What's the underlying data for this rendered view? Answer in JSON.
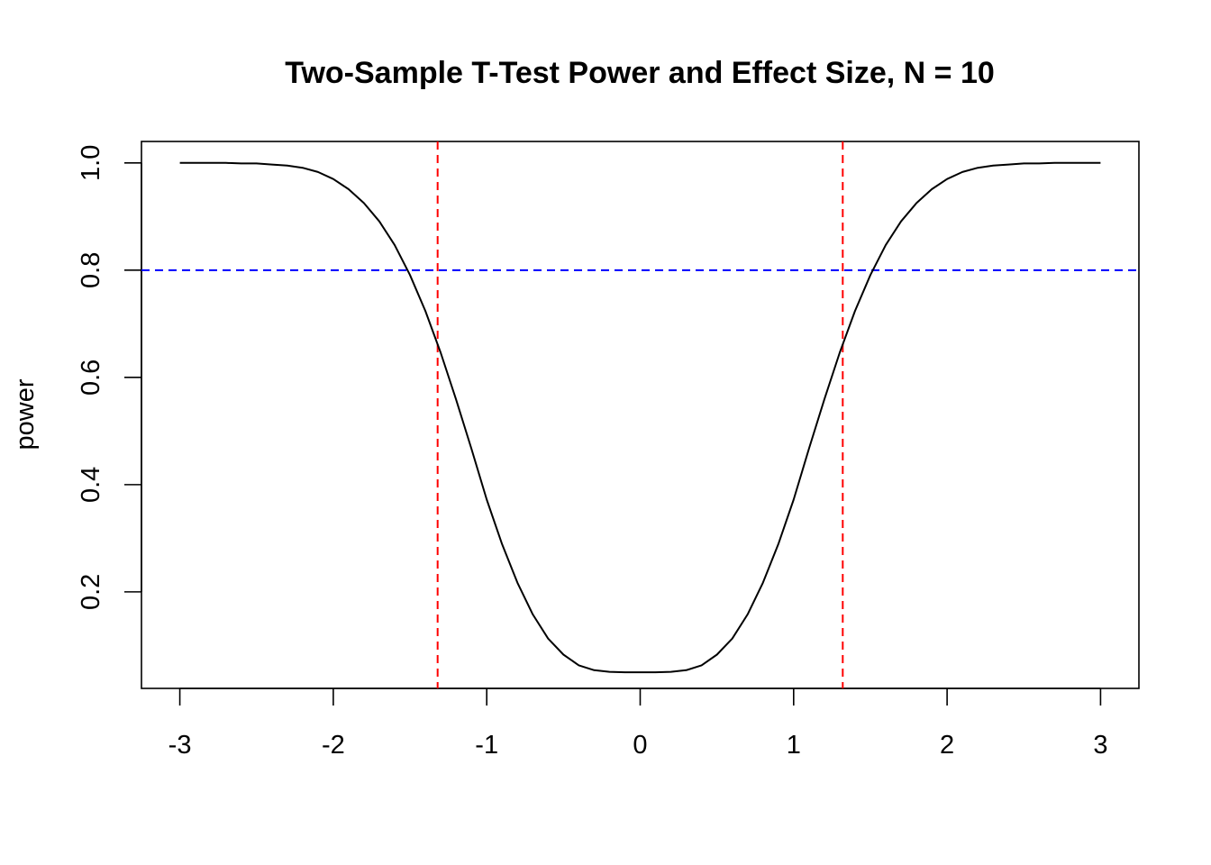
{
  "chart_data": {
    "type": "line",
    "title": "Two-Sample T-Test Power and Effect Size, N = 10",
    "xlabel": "",
    "ylabel": "power",
    "xlim": [
      -3.25,
      3.25
    ],
    "ylim": [
      0.02,
      1.04
    ],
    "x_ticks": [
      -3,
      -2,
      -1,
      0,
      1,
      2,
      3
    ],
    "x_tick_labels": [
      "-3",
      "-2",
      "-1",
      "0",
      "1",
      "2",
      "3"
    ],
    "y_ticks": [
      0.2,
      0.4,
      0.6,
      0.8,
      1.0
    ],
    "y_tick_labels": [
      "0.2",
      "0.4",
      "0.6",
      "0.8",
      "1.0"
    ],
    "grid": false,
    "line_color": "#000000",
    "series": [
      {
        "x": [
          -3.0,
          -2.9,
          -2.8,
          -2.7,
          -2.6,
          -2.5,
          -2.4,
          -2.3,
          -2.2,
          -2.1,
          -2.0,
          -1.9,
          -1.8,
          -1.7,
          -1.6,
          -1.5,
          -1.4,
          -1.3,
          -1.2,
          -1.1,
          -1.0,
          -0.9,
          -0.8,
          -0.7,
          -0.6,
          -0.5,
          -0.4,
          -0.3,
          -0.2,
          -0.1,
          0.0,
          0.1,
          0.2,
          0.3,
          0.4,
          0.5,
          0.6,
          0.7,
          0.8,
          0.9,
          1.0,
          1.1,
          1.2,
          1.3,
          1.4,
          1.5,
          1.6,
          1.7,
          1.8,
          1.9,
          2.0,
          2.1,
          2.2,
          2.3,
          2.4,
          2.5,
          2.6,
          2.7,
          2.8,
          2.9,
          3.0
        ],
        "y": [
          1.0,
          1.0,
          1.0,
          1.0,
          0.999,
          0.999,
          0.997,
          0.995,
          0.991,
          0.983,
          0.97,
          0.951,
          0.925,
          0.891,
          0.847,
          0.791,
          0.724,
          0.646,
          0.559,
          0.467,
          0.372,
          0.289,
          0.217,
          0.158,
          0.113,
          0.083,
          0.063,
          0.054,
          0.051,
          0.05,
          0.05,
          0.05,
          0.051,
          0.054,
          0.063,
          0.083,
          0.113,
          0.158,
          0.217,
          0.289,
          0.372,
          0.467,
          0.559,
          0.646,
          0.724,
          0.791,
          0.847,
          0.891,
          0.925,
          0.951,
          0.97,
          0.983,
          0.991,
          0.995,
          0.997,
          0.999,
          0.999,
          1.0,
          1.0,
          1.0,
          1.0
        ]
      }
    ],
    "reference_lines": [
      {
        "orientation": "horizontal",
        "value": 0.8,
        "color": "#0000ff",
        "style": "dashed"
      },
      {
        "orientation": "vertical",
        "value": -1.32,
        "color": "#ff0000",
        "style": "dashed"
      },
      {
        "orientation": "vertical",
        "value": 1.32,
        "color": "#ff0000",
        "style": "dashed"
      }
    ]
  }
}
